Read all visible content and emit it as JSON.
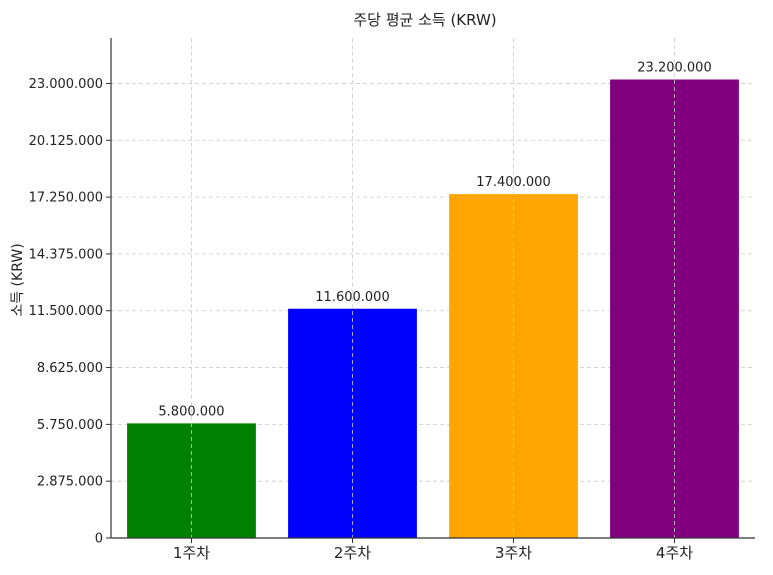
{
  "chart_data": {
    "type": "bar",
    "title": "주당 평균 소득 (KRW)",
    "xlabel": "",
    "ylabel": "소득 (KRW)",
    "categories": [
      "1주차",
      "2주차",
      "3주차",
      "4주차"
    ],
    "values": [
      5800000,
      11600000,
      17400000,
      23200000
    ],
    "value_labels": [
      "5.800.000",
      "11.600.000",
      "17.400.000",
      "23.200.000"
    ],
    "colors": [
      "#008000",
      "#0000ff",
      "#ffa500",
      "#800080"
    ],
    "yticks": [
      0,
      2875000,
      5750000,
      8625000,
      11500000,
      14375000,
      17250000,
      20125000,
      23000000
    ],
    "ytick_labels": [
      "0",
      "2.875.000",
      "5.750.000",
      "8.625.000",
      "11.500.000",
      "14.375.000",
      "17.250.000",
      "20.125.000",
      "23.000.000"
    ],
    "ylim": [
      0,
      25300000
    ],
    "grid": true,
    "legend": "none"
  }
}
